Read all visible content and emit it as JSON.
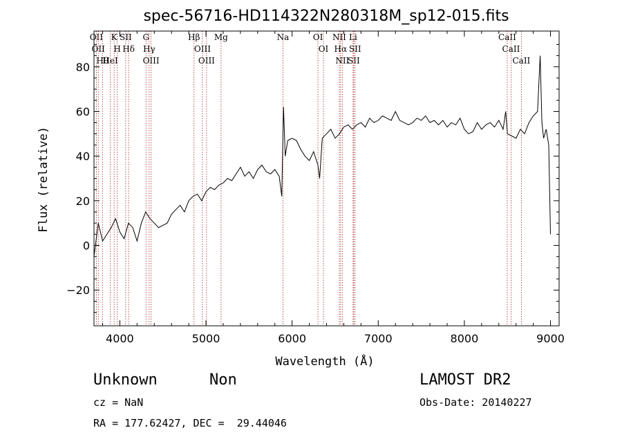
{
  "chart_data": {
    "type": "line",
    "title": "spec-56716-HD114322N280318M_sp12-015.fits",
    "xlabel": "Wavelength (Å)",
    "ylabel": "Flux (relative)",
    "xlim": [
      3700,
      9100
    ],
    "ylim": [
      -36,
      96
    ],
    "xticks": [
      4000,
      5000,
      6000,
      7000,
      8000,
      9000
    ],
    "yticks": [
      -20,
      0,
      20,
      40,
      60,
      80
    ],
    "grid": false,
    "line_color": "#000000",
    "marker_color": "#aa2020",
    "series": [
      {
        "x": [
          3700,
          3750,
          3800,
          3850,
          3900,
          3950,
          4000,
          4050,
          4100,
          4150,
          4200,
          4250,
          4300,
          4350,
          4400,
          4450,
          4500,
          4550,
          4600,
          4650,
          4700,
          4750,
          4800,
          4850,
          4900,
          4950,
          5000,
          5050,
          5100,
          5150,
          5200,
          5250,
          5300,
          5350,
          5400,
          5450,
          5500,
          5550,
          5600,
          5650,
          5700,
          5750,
          5800,
          5850,
          5880,
          5900,
          5920,
          5950,
          6000,
          6050,
          6100,
          6150,
          6200,
          6250,
          6300,
          6320,
          6350,
          6400,
          6450,
          6500,
          6550,
          6600,
          6650,
          6700,
          6750,
          6800,
          6850,
          6900,
          6950,
          7000,
          7050,
          7100,
          7150,
          7200,
          7250,
          7300,
          7350,
          7400,
          7450,
          7500,
          7550,
          7600,
          7650,
          7700,
          7750,
          7800,
          7850,
          7900,
          7950,
          8000,
          8050,
          8100,
          8150,
          8200,
          8250,
          8300,
          8350,
          8400,
          8450,
          8480,
          8500,
          8550,
          8600,
          8650,
          8700,
          8750,
          8800,
          8850,
          8880,
          8900,
          8920,
          8950,
          8980,
          9000
        ],
        "y": [
          -5,
          10,
          2,
          5,
          8,
          12,
          6,
          3,
          10,
          8,
          2,
          10,
          15,
          12,
          10,
          8,
          9,
          10,
          14,
          16,
          18,
          15,
          20,
          22,
          23,
          20,
          24,
          26,
          25,
          27,
          28,
          30,
          29,
          32,
          35,
          31,
          33,
          30,
          34,
          36,
          33,
          32,
          34,
          31,
          22,
          62,
          40,
          47,
          48,
          47,
          43,
          40,
          38,
          42,
          36,
          30,
          48,
          50,
          52,
          48,
          50,
          53,
          54,
          52,
          54,
          55,
          53,
          57,
          55,
          56,
          58,
          57,
          56,
          60,
          56,
          55,
          54,
          55,
          57,
          56,
          58,
          55,
          56,
          54,
          56,
          53,
          55,
          54,
          57,
          52,
          50,
          51,
          55,
          52,
          54,
          55,
          53,
          56,
          52,
          60,
          50,
          49,
          48,
          52,
          50,
          55,
          58,
          60,
          85,
          55,
          48,
          52,
          45,
          5
        ]
      }
    ],
    "line_markers": [
      {
        "wl": 3727,
        "label": "OII"
      },
      {
        "wl": 3750,
        "label": "OII"
      },
      {
        "wl": 3798,
        "label": "Hθ"
      },
      {
        "wl": 3889,
        "label": "HeI"
      },
      {
        "wl": 3934,
        "label": "K"
      },
      {
        "wl": 3970,
        "label": "H"
      },
      {
        "wl": 4068,
        "label": "SII"
      },
      {
        "wl": 4102,
        "label": "Hδ"
      },
      {
        "wl": 4304,
        "label": "G"
      },
      {
        "wl": 4340,
        "label": "Hγ"
      },
      {
        "wl": 4363,
        "label": "OIII"
      },
      {
        "wl": 4861,
        "label": "Hβ"
      },
      {
        "wl": 4959,
        "label": "OIII"
      },
      {
        "wl": 5007,
        "label": "OIII"
      },
      {
        "wl": 5175,
        "label": "Mg"
      },
      {
        "wl": 5894,
        "label": "Na"
      },
      {
        "wl": 6300,
        "label": "OI"
      },
      {
        "wl": 6364,
        "label": "OI"
      },
      {
        "wl": 6548,
        "label": "NII"
      },
      {
        "wl": 6563,
        "label": "Hα"
      },
      {
        "wl": 6583,
        "label": "NII"
      },
      {
        "wl": 6708,
        "label": "Li"
      },
      {
        "wl": 6716,
        "label": "SII"
      },
      {
        "wl": 6731,
        "label": "SII"
      },
      {
        "wl": 8498,
        "label": "CaII"
      },
      {
        "wl": 8542,
        "label": "CaII"
      },
      {
        "wl": 8662,
        "label": "CaII"
      }
    ]
  },
  "info": {
    "class_label": "Unknown",
    "subclass_label": "Non",
    "survey": "LAMOST DR2",
    "cz": "cz = NaN",
    "obs_date": "Obs-Date: 20140227",
    "coords": "RA = 177.62427, DEC =  29.44046"
  }
}
